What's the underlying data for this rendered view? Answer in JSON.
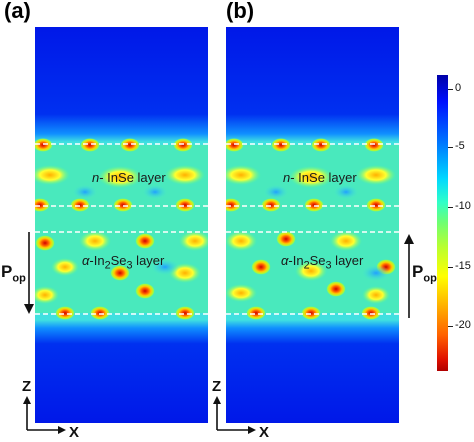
{
  "panels": {
    "a": {
      "label": "(a)",
      "layer_top": "n- InSe layer",
      "layer_bottom": "α-In2Se3 layer",
      "polarization": "P",
      "polarization_sub": "op",
      "polarization_direction": "down"
    },
    "b": {
      "label": "(b)",
      "layer_top": "n- InSe layer",
      "layer_bottom": "α-In2Se3 layer",
      "polarization": "P",
      "polarization_sub": "op",
      "polarization_direction": "up"
    }
  },
  "axes": {
    "vertical": "Z",
    "horizontal": "X"
  },
  "colorbar": {
    "ticks": [
      "0",
      "-5",
      "-10",
      "-15",
      "-20"
    ],
    "top_color": "#0000a8",
    "bottom_color": "#b00000"
  },
  "colors": {
    "background_field": "#0a28e6",
    "dashed_line": "#ffffff"
  }
}
